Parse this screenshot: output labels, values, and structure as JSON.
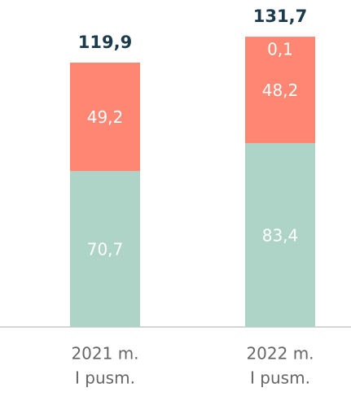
{
  "chart_data": {
    "type": "stacked_bar",
    "categories": [
      [
        "2021 m.",
        "I pusm."
      ],
      [
        "2022 m.",
        "I pusm."
      ]
    ],
    "series": [
      {
        "color": "#aed4c8",
        "values": [
          70.7,
          83.4
        ],
        "value_labels": [
          "70,7",
          "83,4"
        ]
      },
      {
        "color": "#ff8672",
        "values": [
          49.2,
          48.2
        ],
        "value_labels": [
          "49,2",
          "48,2"
        ]
      },
      {
        "color": "#ff8672",
        "values": [
          null,
          0.1
        ],
        "value_labels": [
          null,
          "0,1"
        ]
      }
    ],
    "totals": [
      119.9,
      131.7
    ],
    "total_labels": [
      "119,9",
      "131,7"
    ]
  }
}
